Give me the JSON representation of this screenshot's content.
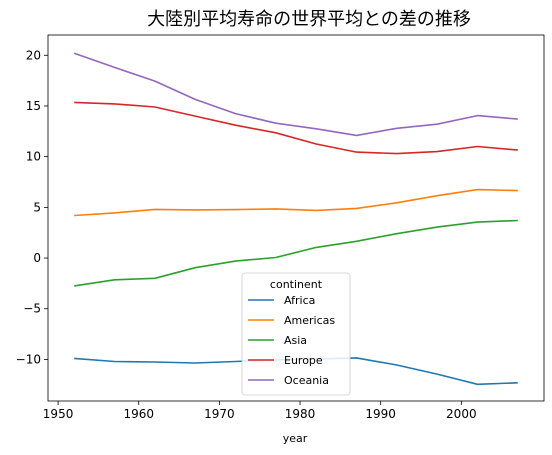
{
  "chart_data": {
    "type": "line",
    "title": "大陸別平均寿命の世界平均との差の推移",
    "xlabel": "year",
    "ylabel": "",
    "xlim": [
      1948.75,
      2010.25
    ],
    "ylim": [
      -14.1,
      22.0
    ],
    "xticks": [
      1950,
      1960,
      1970,
      1980,
      1990,
      2000
    ],
    "yticks": [
      -10,
      -5,
      0,
      5,
      10,
      15,
      20
    ],
    "grid": false,
    "legend": {
      "title": "continent",
      "placement": "lower-center"
    },
    "x": [
      1952,
      1957,
      1962,
      1967,
      1972,
      1977,
      1982,
      1987,
      1992,
      1997,
      2002,
      2007
    ],
    "series": [
      {
        "name": "Africa",
        "color": "#1f77b4",
        "values": [
          -9.9,
          -10.2,
          -10.25,
          -10.35,
          -10.2,
          -10.05,
          -9.95,
          -9.85,
          -10.55,
          -11.45,
          -12.45,
          -12.3
        ]
      },
      {
        "name": "Americas",
        "color": "#ff7f0e",
        "values": [
          4.2,
          4.45,
          4.8,
          4.75,
          4.78,
          4.85,
          4.7,
          4.9,
          5.45,
          6.15,
          6.75,
          6.65
        ]
      },
      {
        "name": "Asia",
        "color": "#2ca02c",
        "values": [
          -2.75,
          -2.15,
          -2.0,
          -0.95,
          -0.3,
          0.05,
          1.05,
          1.65,
          2.4,
          3.05,
          3.55,
          3.7
        ]
      },
      {
        "name": "Europe",
        "color": "#d62728",
        "values": [
          15.35,
          15.2,
          14.9,
          14.0,
          13.1,
          12.35,
          11.25,
          10.45,
          10.3,
          10.5,
          11.0,
          10.65
        ]
      },
      {
        "name": "Oceania",
        "color": "#9467bd",
        "values": [
          20.2,
          18.8,
          17.45,
          15.65,
          14.25,
          13.3,
          12.75,
          12.1,
          12.8,
          13.2,
          14.05,
          13.7
        ]
      }
    ]
  }
}
